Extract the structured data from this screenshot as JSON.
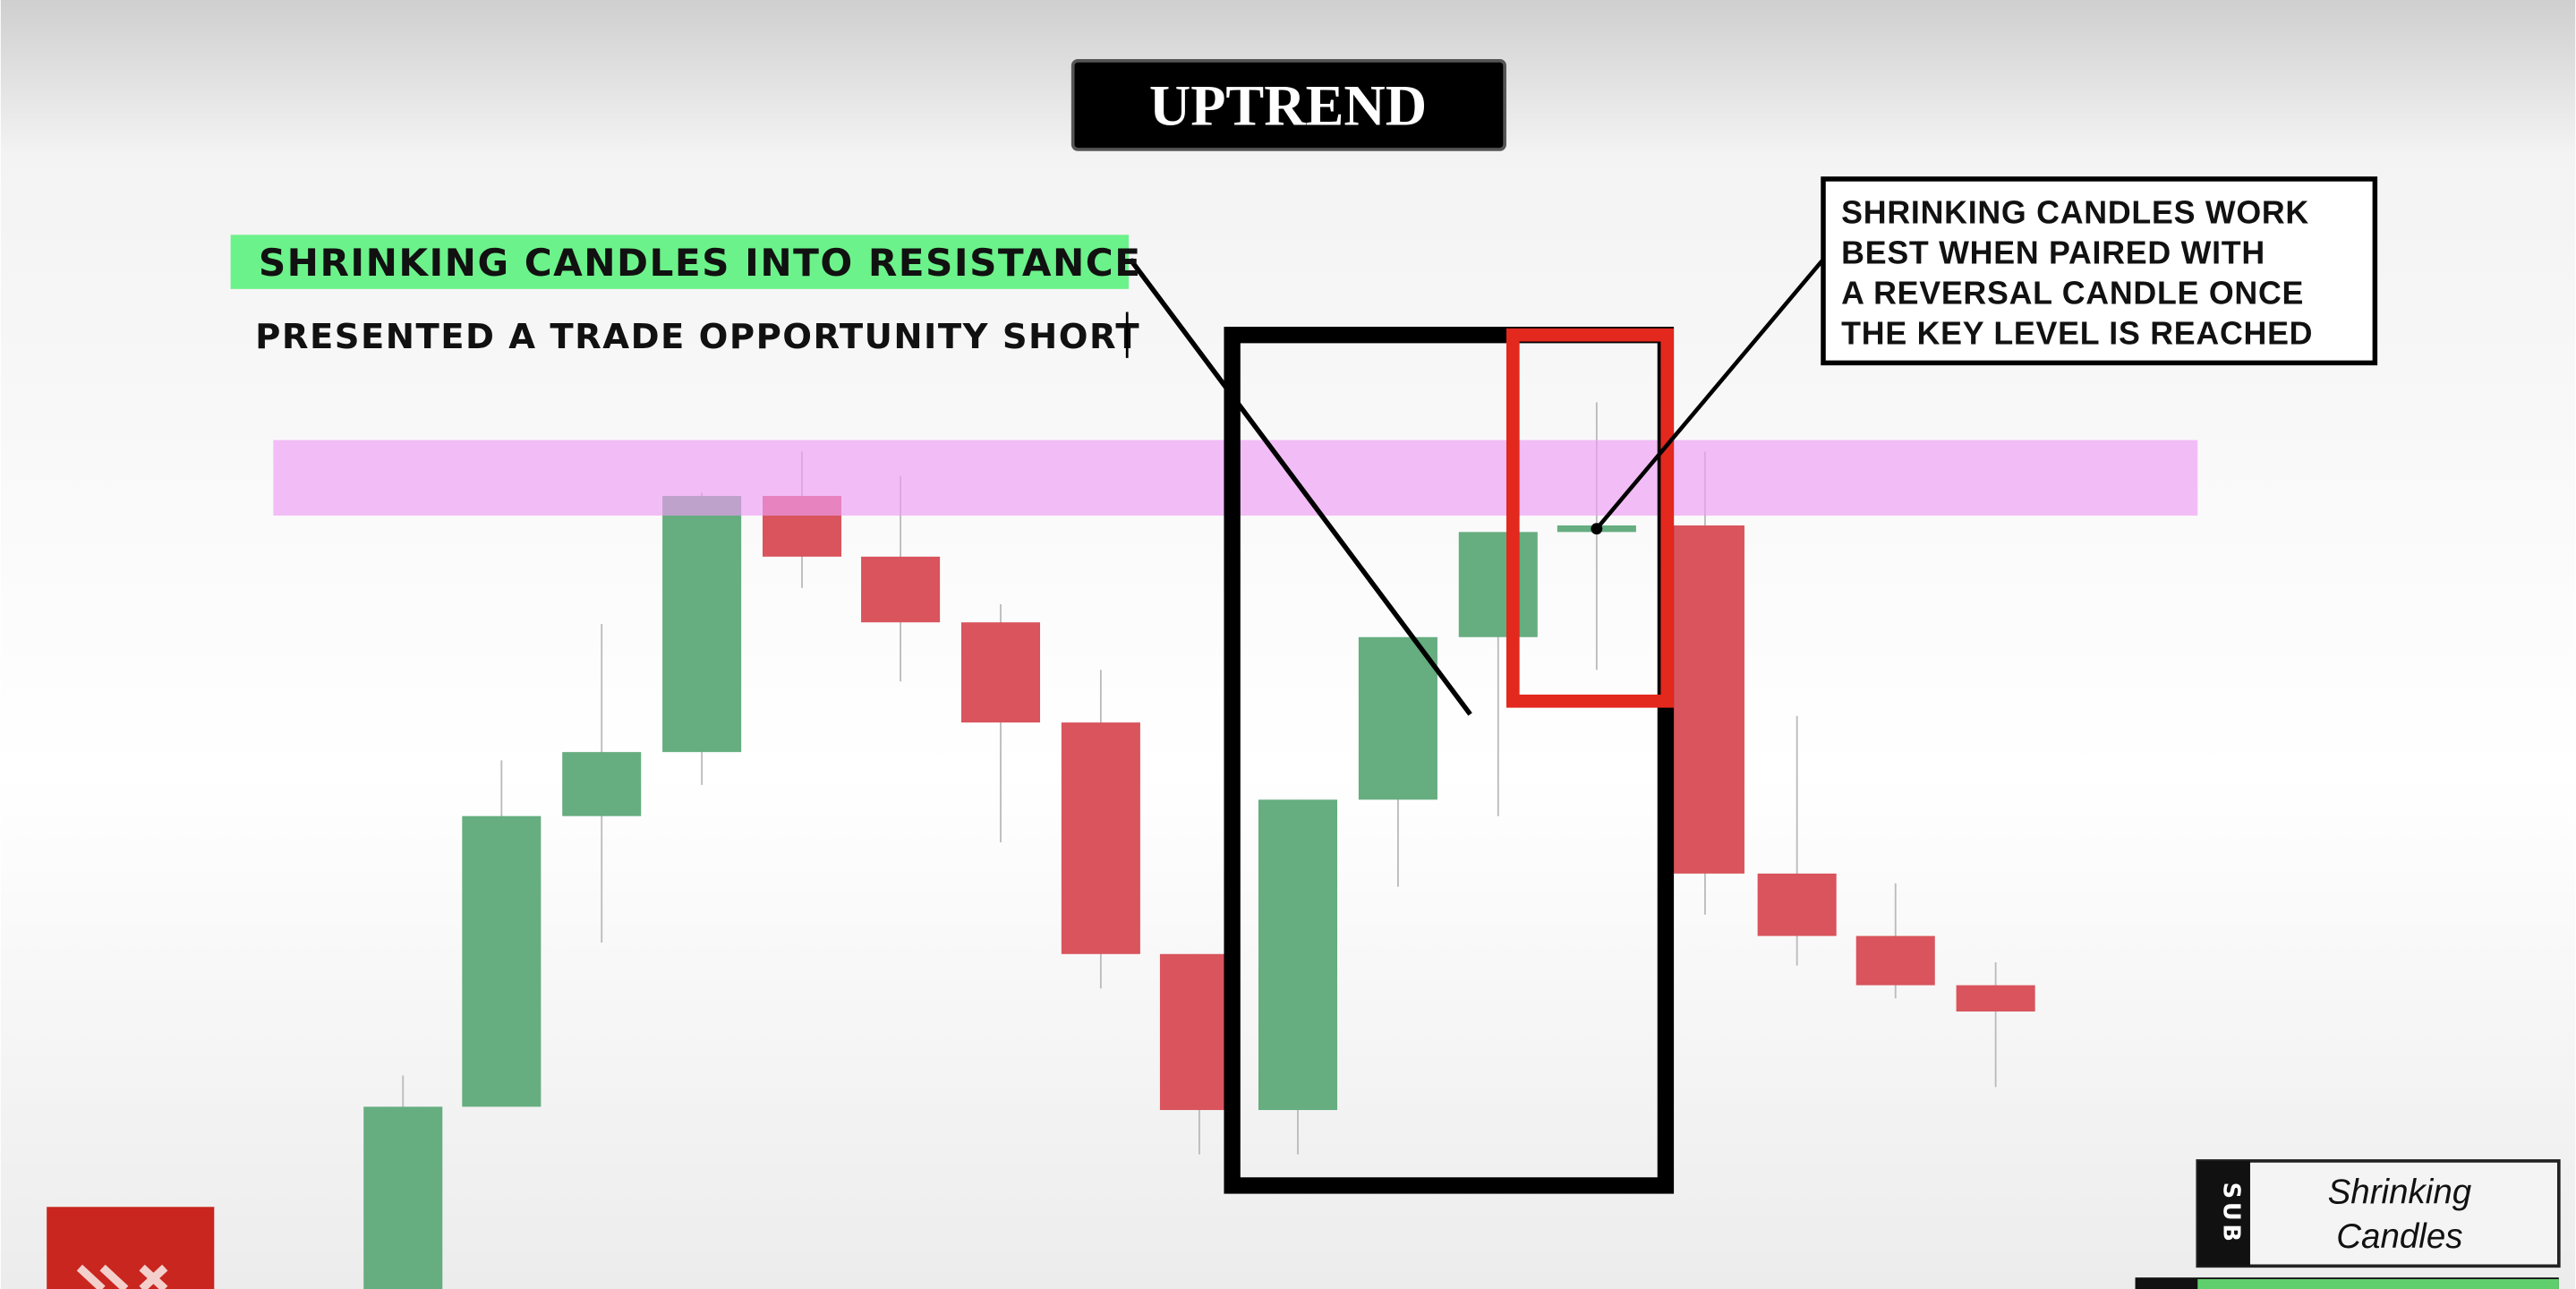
{
  "title": "UPTREND",
  "callout": {
    "highlight": "SHRINKING CANDLES INTO RESISTANCE",
    "subtext": "PRESENTED A TRADE OPPORTUNITY SHORT"
  },
  "note": {
    "lines": [
      "SHRINKING CANDLES WORK",
      "BEST WHEN PAIRED WITH",
      "A REVERSAL CANDLE ONCE",
      "THE KEY LEVEL IS REACHED"
    ]
  },
  "badge": {
    "tag": "SUB",
    "lines": [
      "Shrinking",
      "Candles"
    ]
  }
}
